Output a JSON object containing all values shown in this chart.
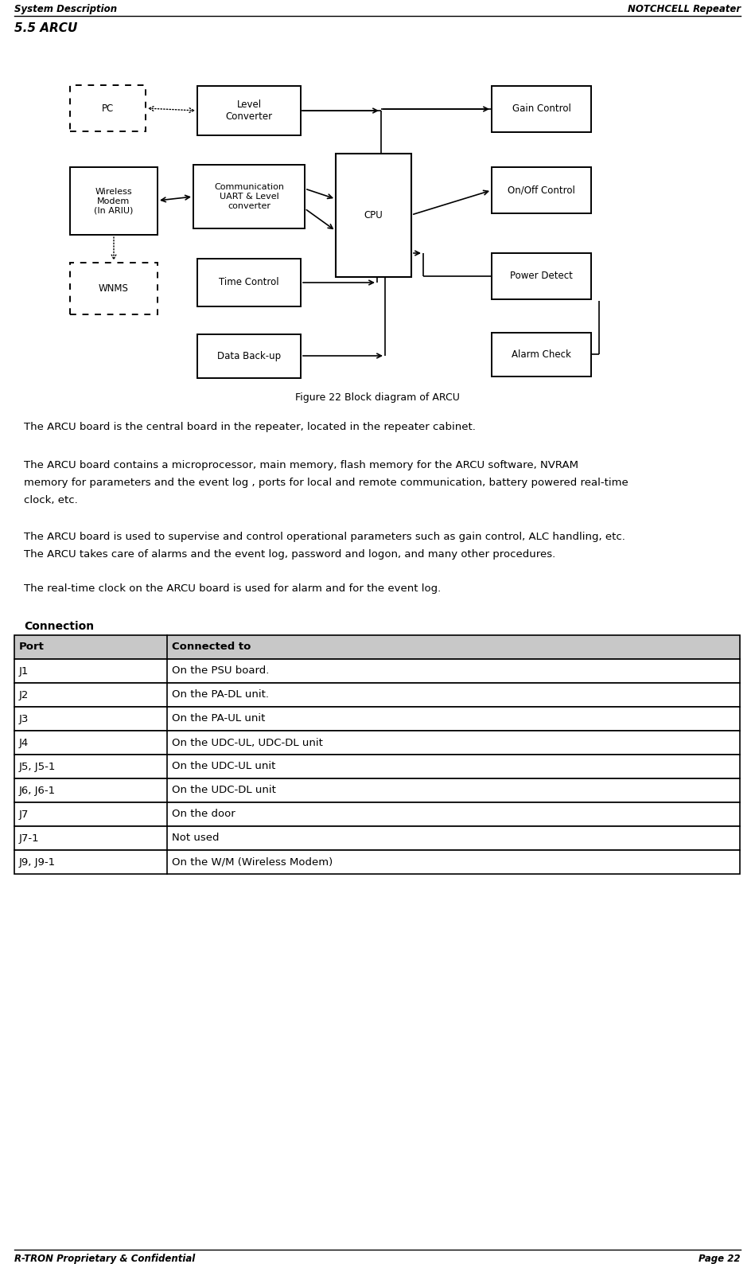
{
  "header_left": "System Description",
  "header_right": "NOTCHCELL Repeater",
  "footer_left": "R-TRON Proprietary & Confidential",
  "footer_right": "Page 22",
  "section_title": "5.5 ARCU",
  "figure_caption": "Figure 22 Block diagram of ARCU",
  "para1": "The ARCU board is the central board in the repeater, located in the repeater cabinet.",
  "para2_line1": "The ARCU board contains a microprocessor, main memory, flash memory for the ARCU software, NVRAM",
  "para2_line2": "memory for parameters and the event log , ports for local and remote communication, battery powered real-time",
  "para2_line3": "clock, etc.",
  "para3_line1": "The ARCU board is used to supervise and control operational parameters such as gain control, ALC handling, etc.",
  "para3_line2": "The ARCU takes care of alarms and the event log, password and logon, and many other procedures.",
  "para4": "The real-time clock on the ARCU board is used for alarm and for the event log.",
  "table_title": "Connection",
  "table_headers": [
    "Port",
    "Connected to"
  ],
  "table_rows": [
    [
      "J1",
      "On the PSU board."
    ],
    [
      "J2",
      "On the PA-DL unit."
    ],
    [
      "J3",
      "On the PA-UL unit"
    ],
    [
      "J4",
      "On the UDC-UL, UDC-DL unit"
    ],
    [
      "J5, J5-1",
      "On the UDC-UL unit"
    ],
    [
      "J6, J6-1",
      "On the UDC-DL unit"
    ],
    [
      "J7",
      "On the door"
    ],
    [
      "J7-1",
      "Not used"
    ],
    [
      "J9, J9-1",
      "On the W/M (Wireless Modem)"
    ]
  ],
  "bg_color": "#ffffff",
  "table_header_bg": "#c8c8c8",
  "table_border_color": "#000000",
  "table_row_bg_even": "#ffffff",
  "table_row_bg_odd": "#ffffff"
}
